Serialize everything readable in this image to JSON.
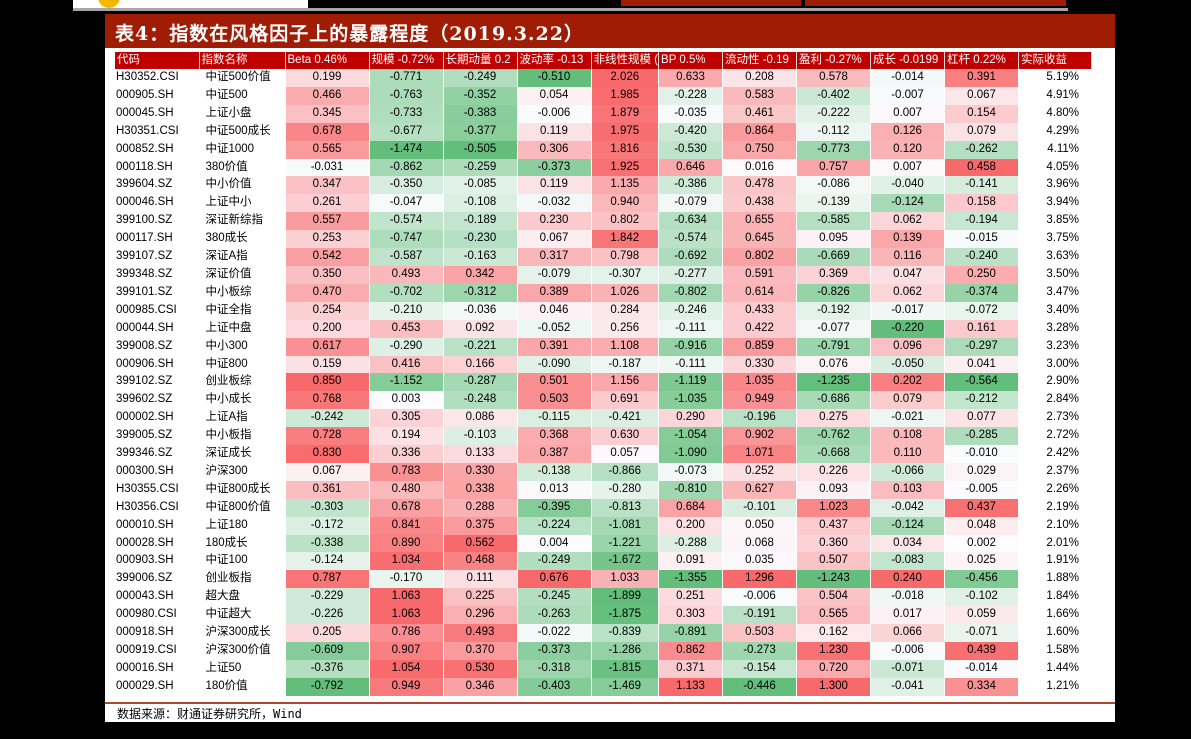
{
  "title": "表4：指数在风格因子上的暴露程度（2019.3.22）",
  "source": "数据来源：财通证券研究所，Wind",
  "colors": {
    "title_bg": "#a01c05",
    "header_bg": "#c00000",
    "positive": "#f8696b",
    "negative": "#63be7b",
    "neutral": "#fcfcff"
  },
  "table": {
    "headers": [
      "代码",
      "指数名称",
      "Beta 0.46%",
      "规模 -0.72%",
      "长期动量 0.2",
      "波动率 -0.13",
      "非线性规模 (",
      "BP 0.5%",
      "流动性 -0.19",
      "盈利 -0.27%",
      "成长 -0.0199",
      "杠杆 0.22%",
      "实际收益"
    ],
    "rows": [
      [
        "H30352.CSI",
        "中证500价值",
        "0.199",
        "-0.771",
        "-0.249",
        "-0.510",
        "2.026",
        "0.633",
        "0.208",
        "0.578",
        "-0.014",
        "0.391",
        "5.19%"
      ],
      [
        "000905.SH",
        "中证500",
        "0.466",
        "-0.763",
        "-0.352",
        "0.054",
        "1.985",
        "-0.228",
        "0.583",
        "-0.402",
        "-0.007",
        "0.067",
        "4.91%"
      ],
      [
        "000045.SH",
        "上证小盘",
        "0.345",
        "-0.733",
        "-0.383",
        "-0.006",
        "1.879",
        "-0.035",
        "0.461",
        "-0.222",
        "0.007",
        "0.154",
        "4.80%"
      ],
      [
        "H30351.CSI",
        "中证500成长",
        "0.678",
        "-0.677",
        "-0.377",
        "0.119",
        "1.975",
        "-0.420",
        "0.864",
        "-0.112",
        "0.126",
        "0.079",
        "4.29%"
      ],
      [
        "000852.SH",
        "中证1000",
        "0.565",
        "-1.474",
        "-0.505",
        "0.306",
        "1.816",
        "-0.530",
        "0.750",
        "-0.773",
        "0.120",
        "-0.262",
        "4.11%"
      ],
      [
        "000118.SH",
        "380价值",
        "-0.031",
        "-0.862",
        "-0.259",
        "-0.373",
        "1.925",
        "0.646",
        "0.016",
        "0.757",
        "0.007",
        "0.458",
        "4.05%"
      ],
      [
        "399604.SZ",
        "中小价值",
        "0.347",
        "-0.350",
        "-0.085",
        "0.119",
        "1.135",
        "-0.386",
        "0.478",
        "-0.086",
        "-0.040",
        "-0.141",
        "3.96%"
      ],
      [
        "000046.SH",
        "上证中小",
        "0.261",
        "-0.047",
        "-0.108",
        "-0.032",
        "0.940",
        "-0.079",
        "0.438",
        "-0.139",
        "-0.124",
        "0.158",
        "3.94%"
      ],
      [
        "399100.SZ",
        "深证新综指",
        "0.557",
        "-0.574",
        "-0.189",
        "0.230",
        "0.802",
        "-0.634",
        "0.655",
        "-0.585",
        "0.062",
        "-0.194",
        "3.85%"
      ],
      [
        "000117.SH",
        "380成长",
        "0.253",
        "-0.747",
        "-0.230",
        "0.067",
        "1.842",
        "-0.574",
        "0.645",
        "0.095",
        "0.139",
        "-0.015",
        "3.75%"
      ],
      [
        "399107.SZ",
        "深证A指",
        "0.542",
        "-0.587",
        "-0.163",
        "0.317",
        "0.798",
        "-0.692",
        "0.802",
        "-0.669",
        "0.116",
        "-0.240",
        "3.63%"
      ],
      [
        "399348.SZ",
        "深证价值",
        "0.350",
        "0.493",
        "0.342",
        "-0.079",
        "-0.307",
        "-0.277",
        "0.591",
        "0.369",
        "0.047",
        "0.250",
        "3.50%"
      ],
      [
        "399101.SZ",
        "中小板综",
        "0.470",
        "-0.702",
        "-0.312",
        "0.389",
        "1.026",
        "-0.802",
        "0.614",
        "-0.826",
        "0.062",
        "-0.374",
        "3.47%"
      ],
      [
        "000985.CSI",
        "中证全指",
        "0.254",
        "-0.210",
        "-0.036",
        "0.046",
        "0.284",
        "-0.246",
        "0.433",
        "-0.192",
        "-0.017",
        "-0.072",
        "3.40%"
      ],
      [
        "000044.SH",
        "上证中盘",
        "0.200",
        "0.453",
        "0.092",
        "-0.052",
        "0.256",
        "-0.111",
        "0.422",
        "-0.077",
        "-0.220",
        "0.161",
        "3.28%"
      ],
      [
        "399008.SZ",
        "中小300",
        "0.617",
        "-0.290",
        "-0.221",
        "0.391",
        "1.108",
        "-0.916",
        "0.859",
        "-0.791",
        "0.096",
        "-0.297",
        "3.23%"
      ],
      [
        "000906.SH",
        "中证800",
        "0.159",
        "0.416",
        "0.166",
        "-0.090",
        "-0.187",
        "-0.111",
        "0.330",
        "0.076",
        "-0.050",
        "0.041",
        "3.00%"
      ],
      [
        "399102.SZ",
        "创业板综",
        "0.850",
        "-1.152",
        "-0.287",
        "0.501",
        "1.156",
        "-1.119",
        "1.035",
        "-1.235",
        "0.202",
        "-0.564",
        "2.90%"
      ],
      [
        "399602.SZ",
        "中小成长",
        "0.768",
        "0.003",
        "-0.248",
        "0.503",
        "0.691",
        "-1.035",
        "0.949",
        "-0.686",
        "0.079",
        "-0.212",
        "2.84%"
      ],
      [
        "000002.SH",
        "上证A指",
        "-0.242",
        "0.305",
        "0.086",
        "-0.115",
        "-0.421",
        "0.290",
        "-0.196",
        "0.275",
        "-0.021",
        "0.077",
        "2.73%"
      ],
      [
        "399005.SZ",
        "中小板指",
        "0.728",
        "0.194",
        "-0.103",
        "0.368",
        "0.630",
        "-1.054",
        "0.902",
        "-0.762",
        "0.108",
        "-0.285",
        "2.72%"
      ],
      [
        "399346.SZ",
        "深证成长",
        "0.830",
        "0.336",
        "0.133",
        "0.387",
        "0.057",
        "-1.090",
        "1.071",
        "-0.668",
        "0.110",
        "-0.010",
        "2.42%"
      ],
      [
        "000300.SH",
        "沪深300",
        "0.067",
        "0.783",
        "0.330",
        "-0.138",
        "-0.866",
        "-0.073",
        "0.252",
        "0.226",
        "-0.066",
        "0.029",
        "2.37%"
      ],
      [
        "H30355.CSI",
        "中证800成长",
        "0.361",
        "0.480",
        "0.338",
        "0.013",
        "-0.280",
        "-0.810",
        "0.627",
        "0.093",
        "0.103",
        "-0.005",
        "2.26%"
      ],
      [
        "H30356.CSI",
        "中证800价值",
        "-0.303",
        "0.678",
        "0.288",
        "-0.395",
        "-0.813",
        "0.684",
        "-0.101",
        "1.023",
        "-0.042",
        "0.437",
        "2.19%"
      ],
      [
        "000010.SH",
        "上证180",
        "-0.172",
        "0.841",
        "0.375",
        "-0.224",
        "-1.081",
        "0.200",
        "0.050",
        "0.437",
        "-0.124",
        "0.048",
        "2.10%"
      ],
      [
        "000028.SH",
        "180成长",
        "-0.338",
        "0.890",
        "0.562",
        "0.004",
        "-1.221",
        "-0.288",
        "0.068",
        "0.360",
        "0.034",
        "0.002",
        "2.01%"
      ],
      [
        "000903.SH",
        "中证100",
        "-0.124",
        "1.034",
        "0.468",
        "-0.249",
        "-1.672",
        "0.091",
        "0.035",
        "0.507",
        "-0.083",
        "0.025",
        "1.91%"
      ],
      [
        "399006.SZ",
        "创业板指",
        "0.787",
        "-0.170",
        "0.111",
        "0.676",
        "1.033",
        "-1.355",
        "1.296",
        "-1.243",
        "0.240",
        "-0.456",
        "1.88%"
      ],
      [
        "000043.SH",
        "超大盘",
        "-0.229",
        "1.063",
        "0.225",
        "-0.245",
        "-1.899",
        "0.251",
        "-0.006",
        "0.504",
        "-0.018",
        "-0.102",
        "1.84%"
      ],
      [
        "000980.CSI",
        "中证超大",
        "-0.226",
        "1.063",
        "0.296",
        "-0.263",
        "-1.875",
        "0.303",
        "-0.191",
        "0.565",
        "0.017",
        "0.059",
        "1.66%"
      ],
      [
        "000918.SH",
        "沪深300成长",
        "0.205",
        "0.786",
        "0.493",
        "-0.022",
        "-0.839",
        "-0.891",
        "0.503",
        "0.162",
        "0.066",
        "-0.071",
        "1.60%"
      ],
      [
        "000919.CSI",
        "沪深300价值",
        "-0.609",
        "0.907",
        "0.370",
        "-0.373",
        "-1.286",
        "0.862",
        "-0.273",
        "1.230",
        "-0.006",
        "0.439",
        "1.58%"
      ],
      [
        "000016.SH",
        "上证50",
        "-0.376",
        "1.054",
        "0.530",
        "-0.318",
        "-1.815",
        "0.371",
        "-0.154",
        "0.720",
        "-0.071",
        "-0.014",
        "1.44%"
      ],
      [
        "000029.SH",
        "180价值",
        "-0.792",
        "0.949",
        "0.346",
        "-0.403",
        "-1.469",
        "1.133",
        "-0.446",
        "1.300",
        "-0.041",
        "0.334",
        "1.21%"
      ]
    ]
  }
}
